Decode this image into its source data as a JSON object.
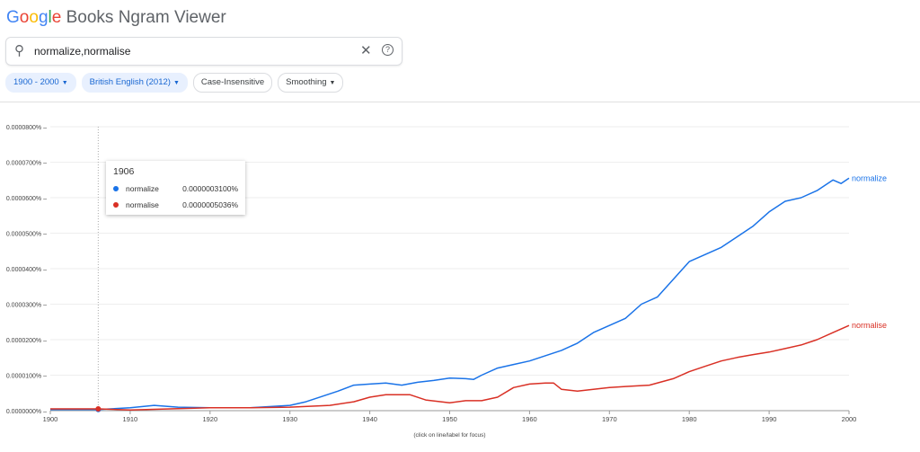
{
  "header": {
    "logo_text": "Google",
    "title": "Books Ngram Viewer"
  },
  "search": {
    "value": "normalize,normalise",
    "icons": [
      "search-icon",
      "close-icon",
      "help-icon"
    ]
  },
  "chips": [
    {
      "label": "1900 - 2000",
      "dropdown": true,
      "selected": true
    },
    {
      "label": "British English (2012)",
      "dropdown": true,
      "selected": true
    },
    {
      "label": "Case-Insensitive",
      "dropdown": false,
      "selected": false
    },
    {
      "label": "Smoothing",
      "dropdown": true,
      "selected": false
    }
  ],
  "tooltip": {
    "year": "1906",
    "rows": [
      {
        "name": "normalize",
        "value": "0.0000003100%",
        "color": "#1a73e8"
      },
      {
        "name": "normalise",
        "value": "0.0000005036%",
        "color": "#d93025"
      }
    ]
  },
  "chart_data": {
    "type": "line",
    "xlabel": "(click on line/label for focus)",
    "ylabel": "",
    "xlim": [
      1900,
      2000
    ],
    "ylim": [
      0,
      8e-05
    ],
    "x_ticks": [
      "1900",
      "1910",
      "1920",
      "1930",
      "1940",
      "1950",
      "1960",
      "1970",
      "1980",
      "1990",
      "2000"
    ],
    "y_ticks": [
      "0.0000000%",
      "0.0000100%",
      "0.0000200%",
      "0.0000300%",
      "0.0000400%",
      "0.0000500%",
      "0.0000600%",
      "0.0000700%",
      "0.0000800%"
    ],
    "y_tick_values": [
      0,
      1e-05,
      2e-05,
      3e-05,
      4e-05,
      5e-05,
      6e-05,
      7e-05,
      8e-05
    ],
    "unit": "percent",
    "series": [
      {
        "name": "normalize",
        "color": "#1a73e8",
        "points": [
          [
            1900,
            3e-07
          ],
          [
            1906,
            3.1e-07
          ],
          [
            1910,
            8e-07
          ],
          [
            1913,
            1.5e-06
          ],
          [
            1916,
            1e-06
          ],
          [
            1920,
            8e-07
          ],
          [
            1925,
            8e-07
          ],
          [
            1930,
            1.5e-06
          ],
          [
            1932,
            2.5e-06
          ],
          [
            1934,
            4e-06
          ],
          [
            1936,
            5.5e-06
          ],
          [
            1938,
            7.2e-06
          ],
          [
            1940,
            7.5e-06
          ],
          [
            1942,
            7.8e-06
          ],
          [
            1944,
            7.2e-06
          ],
          [
            1946,
            8e-06
          ],
          [
            1948,
            8.5e-06
          ],
          [
            1950,
            9.2e-06
          ],
          [
            1952,
            9e-06
          ],
          [
            1953,
            8.8e-06
          ],
          [
            1954,
            1e-05
          ],
          [
            1956,
            1.2e-05
          ],
          [
            1958,
            1.3e-05
          ],
          [
            1960,
            1.4e-05
          ],
          [
            1962,
            1.55e-05
          ],
          [
            1964,
            1.7e-05
          ],
          [
            1966,
            1.9e-05
          ],
          [
            1968,
            2.2e-05
          ],
          [
            1970,
            2.4e-05
          ],
          [
            1972,
            2.6e-05
          ],
          [
            1974,
            3e-05
          ],
          [
            1976,
            3.2e-05
          ],
          [
            1978,
            3.7e-05
          ],
          [
            1980,
            4.2e-05
          ],
          [
            1982,
            4.4e-05
          ],
          [
            1984,
            4.6e-05
          ],
          [
            1986,
            4.9e-05
          ],
          [
            1988,
            5.2e-05
          ],
          [
            1990,
            5.6e-05
          ],
          [
            1992,
            5.9e-05
          ],
          [
            1994,
            6e-05
          ],
          [
            1996,
            6.2e-05
          ],
          [
            1998,
            6.5e-05
          ],
          [
            1999,
            6.4e-05
          ],
          [
            2000,
            6.55e-05
          ]
        ]
      },
      {
        "name": "normalise",
        "color": "#d93025",
        "points": [
          [
            1900,
            5e-07
          ],
          [
            1906,
            5.036e-07
          ],
          [
            1910,
            2e-07
          ],
          [
            1920,
            8e-07
          ],
          [
            1925,
            8e-07
          ],
          [
            1930,
            1e-06
          ],
          [
            1935,
            1.5e-06
          ],
          [
            1938,
            2.5e-06
          ],
          [
            1940,
            3.8e-06
          ],
          [
            1942,
            4.5e-06
          ],
          [
            1945,
            4.5e-06
          ],
          [
            1947,
            3e-06
          ],
          [
            1950,
            2.2e-06
          ],
          [
            1952,
            2.8e-06
          ],
          [
            1954,
            2.8e-06
          ],
          [
            1956,
            3.8e-06
          ],
          [
            1958,
            6.5e-06
          ],
          [
            1960,
            7.5e-06
          ],
          [
            1962,
            7.8e-06
          ],
          [
            1963,
            7.8e-06
          ],
          [
            1964,
            6e-06
          ],
          [
            1966,
            5.5e-06
          ],
          [
            1968,
            6e-06
          ],
          [
            1970,
            6.5e-06
          ],
          [
            1972,
            6.8e-06
          ],
          [
            1975,
            7.2e-06
          ],
          [
            1978,
            9e-06
          ],
          [
            1980,
            1.1e-05
          ],
          [
            1982,
            1.25e-05
          ],
          [
            1984,
            1.4e-05
          ],
          [
            1986,
            1.5e-05
          ],
          [
            1988,
            1.58e-05
          ],
          [
            1990,
            1.65e-05
          ],
          [
            1992,
            1.75e-05
          ],
          [
            1994,
            1.85e-05
          ],
          [
            1996,
            2e-05
          ],
          [
            1998,
            2.2e-05
          ],
          [
            2000,
            2.4e-05
          ]
        ]
      }
    ],
    "focus_year": 1906
  }
}
